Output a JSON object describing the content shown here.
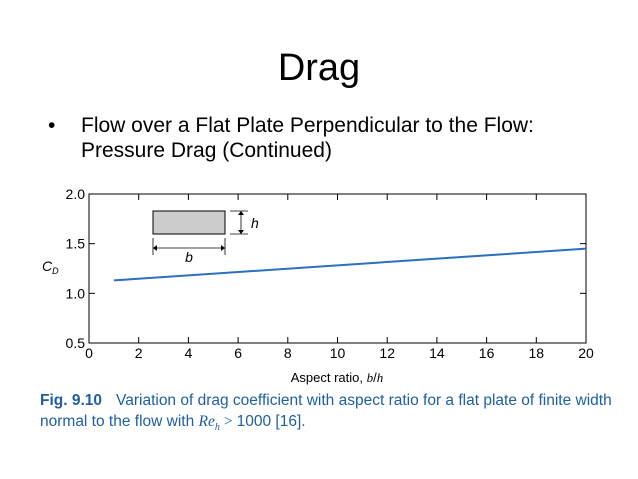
{
  "slide": {
    "title": "Drag",
    "bullet_symbol": "•",
    "bullet_text": "Flow over a Flat Plate Perpendicular to the Flow: Pressure Drag (Continued)"
  },
  "caption": {
    "fig_label": "Fig. 9.10",
    "text_before": "Variation of drag coefficient with aspect ratio for a flat plate of finite width normal to the flow with",
    "re_symbol": "Re",
    "re_subscript": "h",
    "gt": ">",
    "text_after": "1000 [16]."
  },
  "chart_data": {
    "type": "line",
    "xlabel": "Aspect ratio, b/h",
    "ylabel": "C_D",
    "xlim": [
      0,
      20
    ],
    "ylim": [
      0.5,
      2.0
    ],
    "xticks": [
      0,
      2,
      4,
      6,
      8,
      10,
      12,
      14,
      16,
      18,
      20
    ],
    "yticks": [
      0.5,
      1.0,
      1.5,
      2.0
    ],
    "ytick_labels": [
      "0.5",
      "1.0",
      "1.5",
      "2.0"
    ],
    "grid": false,
    "series": [
      {
        "x": [
          1,
          20
        ],
        "y": [
          1.13,
          1.45
        ],
        "color": "#2a6fc0"
      }
    ],
    "inset": {
      "width_label": "b",
      "height_label": "h"
    }
  }
}
